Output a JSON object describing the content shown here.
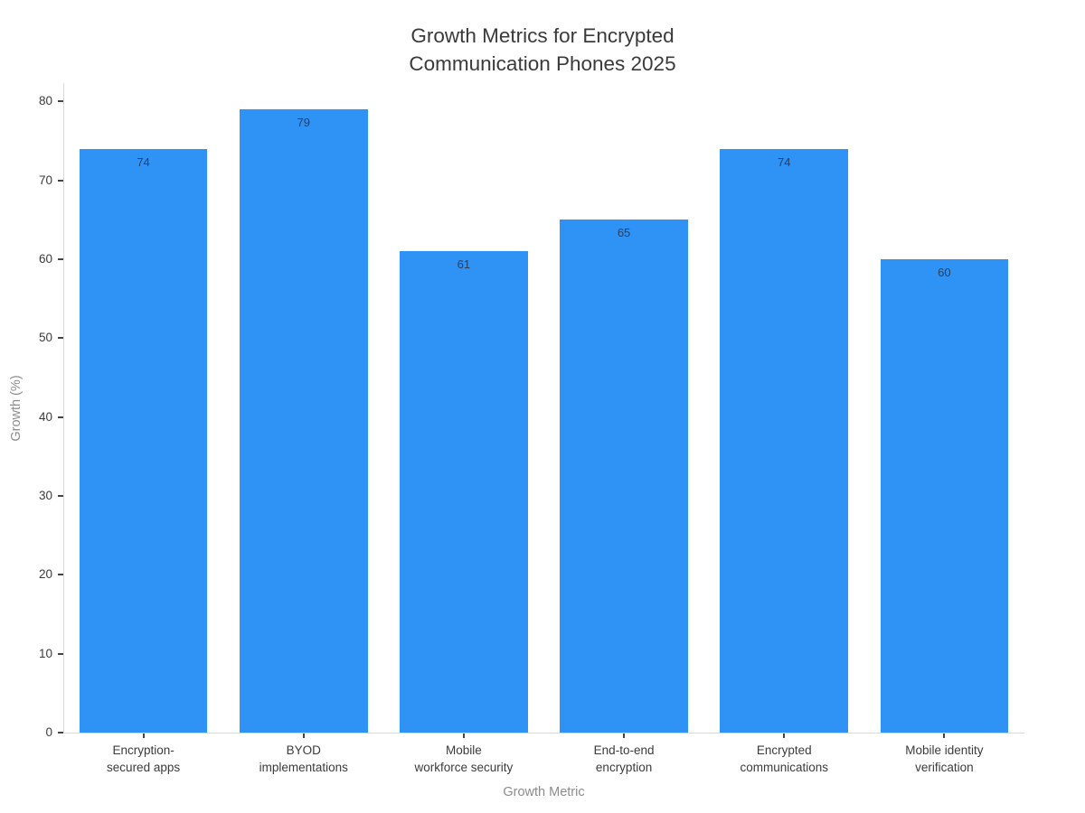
{
  "chart_data": {
    "type": "bar",
    "title": "Growth Metrics for Encrypted Communication Phones 2025",
    "title_lines": [
      "Growth Metrics for Encrypted",
      "Communication Phones 2025"
    ],
    "xlabel": "Growth Metric",
    "ylabel": "Growth (%)",
    "categories": [
      "Encryption-secured apps",
      "BYOD implementations",
      "Mobile workforce security",
      "End-to-end encryption",
      "Encrypted communications",
      "Mobile identity verification"
    ],
    "category_labels": [
      [
        "Encryption-",
        "secured apps"
      ],
      [
        "BYOD",
        "implementations"
      ],
      [
        "Mobile",
        "workforce security"
      ],
      [
        "End-to-end",
        "encryption"
      ],
      [
        "Encrypted",
        "communications"
      ],
      [
        "Mobile identity",
        "verification"
      ]
    ],
    "values": [
      74,
      79,
      61,
      65,
      74,
      60
    ],
    "value_labels": [
      "74",
      "79",
      "61",
      "65",
      "74",
      "60"
    ],
    "yticks": [
      0,
      10,
      20,
      30,
      40,
      50,
      60,
      70,
      80
    ],
    "ylim": [
      0,
      82
    ],
    "grid": false,
    "legend": false,
    "colors": {
      "bar": "#2E93F5",
      "value_label": "#2a3f5f",
      "title": "#3a3a3a",
      "tick_label": "#3b3b3b",
      "axis_title": "#8c8c8c",
      "axis_line": "#d9d9d9",
      "tick_mark": "#444444",
      "background": "#ffffff"
    }
  }
}
